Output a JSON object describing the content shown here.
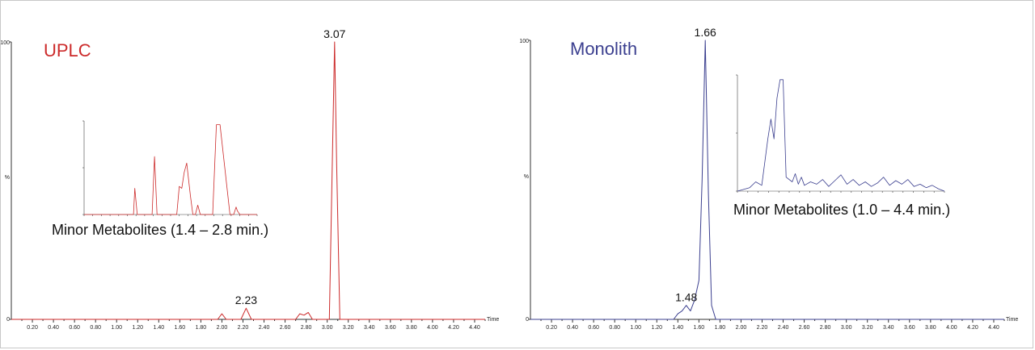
{
  "colors": {
    "uplc": "#cc2a2a",
    "monolith": "#3b3f8f"
  },
  "chart_data": [
    {
      "type": "line",
      "title": "UPLC",
      "xlabel": "Time",
      "ylabel": "%",
      "y_ticks": [
        "100",
        "%",
        "0"
      ],
      "xlim": [
        0.0,
        4.5
      ],
      "ylim": [
        0,
        100
      ],
      "x_ticks": [
        "0.20",
        "0.40",
        "0.60",
        "0.80",
        "1.00",
        "1.20",
        "1.40",
        "1.60",
        "1.80",
        "2.00",
        "2.20",
        "2.40",
        "2.60",
        "2.80",
        "3.00",
        "3.20",
        "3.40",
        "3.60",
        "3.80",
        "4.00",
        "4.20",
        "4.40"
      ],
      "series": [
        {
          "x": [
            0.0,
            1.96,
            2.0,
            2.04,
            2.18,
            2.23,
            2.28,
            2.7,
            2.74,
            2.78,
            2.82,
            2.86,
            3.02,
            3.05,
            3.07,
            3.09,
            3.12,
            4.5
          ],
          "y": [
            0,
            0,
            2,
            0,
            0,
            4,
            0,
            0,
            2,
            1.5,
            2.5,
            0,
            0,
            60,
            100,
            55,
            0,
            0
          ]
        }
      ],
      "peak_labels": [
        {
          "x": 3.07,
          "y": 100,
          "text": "3.07"
        },
        {
          "x": 2.23,
          "y": 4,
          "text": "2.23"
        }
      ],
      "inset": {
        "caption": "Minor Metabolites (1.4 – 2.8 min.)",
        "xlim": [
          1.4,
          2.8
        ],
        "ylim": [
          0,
          100
        ],
        "series": [
          {
            "x": [
              1.4,
              1.8,
              1.81,
              1.83,
              1.95,
              1.97,
              1.99,
              2.15,
              2.17,
              2.19,
              2.21,
              2.23,
              2.26,
              2.28,
              2.3,
              2.32,
              2.34,
              2.44,
              2.47,
              2.5,
              2.58,
              2.61,
              2.63,
              2.64,
              2.65,
              2.66,
              2.8
            ],
            "y": [
              0,
              0,
              28,
              0,
              0,
              62,
              0,
              0,
              30,
              28,
              45,
              55,
              20,
              0,
              0,
              10,
              0,
              0,
              96,
              96,
              0,
              0,
              8,
              4,
              2,
              0,
              0
            ]
          }
        ]
      }
    },
    {
      "type": "line",
      "title": "Monolith",
      "xlabel": "Time",
      "ylabel": "%",
      "y_ticks": [
        "100",
        "%",
        "0"
      ],
      "xlim": [
        0.0,
        4.5
      ],
      "ylim": [
        0,
        100
      ],
      "x_ticks": [
        "0.20",
        "0.40",
        "0.60",
        "0.80",
        "1.00",
        "1.20",
        "1.40",
        "1.60",
        "1.80",
        "2.00",
        "2.20",
        "2.40",
        "2.60",
        "2.80",
        "3.00",
        "3.20",
        "3.40",
        "3.60",
        "3.80",
        "4.00",
        "4.20",
        "4.40"
      ],
      "series": [
        {
          "x": [
            0.0,
            1.36,
            1.4,
            1.44,
            1.48,
            1.52,
            1.56,
            1.6,
            1.63,
            1.66,
            1.69,
            1.72,
            1.76,
            4.5
          ],
          "y": [
            0,
            0,
            2,
            3,
            5,
            3,
            7,
            14,
            50,
            100,
            45,
            5,
            0,
            0
          ]
        }
      ],
      "peak_labels": [
        {
          "x": 1.66,
          "y": 100,
          "text": "1.66"
        },
        {
          "x": 1.48,
          "y": 5,
          "text": "1.48"
        }
      ],
      "inset": {
        "caption": "Minor Metabolites (1.0 – 4.4 min.)",
        "xlim": [
          1.0,
          4.4
        ],
        "ylim": [
          0,
          100
        ],
        "series": [
          {
            "x": [
              1.0,
              1.2,
              1.3,
              1.4,
              1.5,
              1.55,
              1.6,
              1.65,
              1.7,
              1.75,
              1.8,
              1.9,
              1.95,
              2.0,
              2.05,
              2.1,
              2.2,
              2.3,
              2.4,
              2.5,
              2.6,
              2.7,
              2.8,
              2.9,
              3.0,
              3.1,
              3.2,
              3.3,
              3.4,
              3.5,
              3.6,
              3.7,
              3.8,
              3.9,
              4.0,
              4.1,
              4.2,
              4.3,
              4.4
            ],
            "y": [
              0,
              3,
              8,
              5,
              45,
              62,
              45,
              80,
              96,
              96,
              12,
              8,
              15,
              6,
              12,
              5,
              8,
              6,
              10,
              4,
              9,
              14,
              6,
              10,
              5,
              8,
              4,
              7,
              12,
              5,
              9,
              6,
              10,
              4,
              6,
              3,
              5,
              2,
              0
            ]
          }
        ]
      }
    }
  ]
}
